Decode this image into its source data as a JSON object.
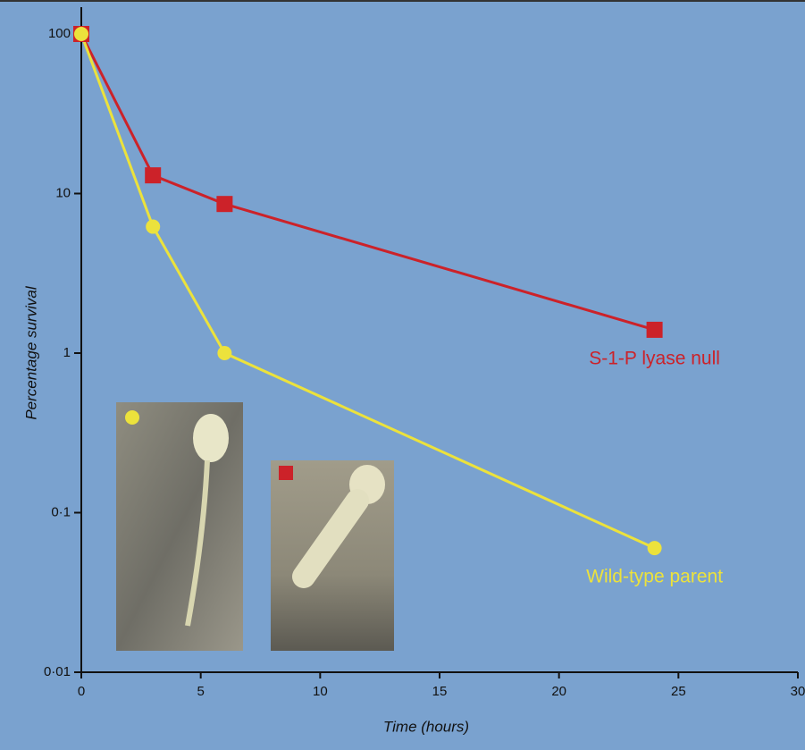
{
  "chart_data": {
    "type": "line",
    "x_label": "Time (hours)",
    "y_label": "Percentage survival",
    "x": [
      0,
      3,
      6,
      24
    ],
    "series": [
      {
        "name": "S-1-P lyase null",
        "color": "#cc2229",
        "marker": "square",
        "values": [
          100,
          13,
          8.6,
          1.4
        ]
      },
      {
        "name": "Wild-type parent",
        "color": "#ece23c",
        "marker": "circle",
        "values": [
          100,
          6.2,
          1,
          0.06
        ]
      }
    ],
    "xlim": [
      0,
      30
    ],
    "xticks": [
      0,
      5,
      10,
      15,
      20,
      25,
      30
    ],
    "ylim": [
      0.01,
      100
    ],
    "yscale": "log",
    "yticks": [
      100,
      10,
      1,
      {
        "value": 0.1,
        "label": "0·1"
      },
      {
        "value": 0.01,
        "label": "0·01"
      }
    ],
    "grid": false
  }
}
